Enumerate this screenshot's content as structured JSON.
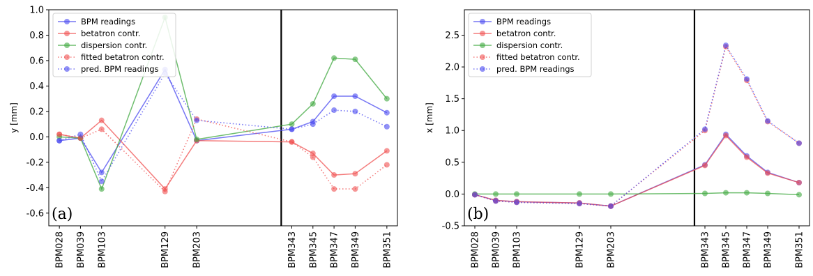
{
  "chart_data": [
    {
      "type": "line",
      "panel_label": "(a)",
      "ylabel": "y [mm]",
      "ylim": [
        -0.7,
        1.0
      ],
      "yticks": [
        "-0.6",
        "-0.4",
        "-0.2",
        "0.0",
        "0.2",
        "0.4",
        "0.6",
        "0.8",
        "1.0"
      ],
      "ytick_values": [
        -0.6,
        -0.4,
        -0.2,
        0.0,
        0.2,
        0.4,
        0.6,
        0.8,
        1.0
      ],
      "categories": [
        "BPM028",
        "BPM039",
        "BPM103",
        "BPM129",
        "BPM203",
        "BPM343",
        "BPM345",
        "BPM347",
        "BPM349",
        "BPM351"
      ],
      "x": [
        0.5,
        1.5,
        2.5,
        5.5,
        7.0,
        11.5,
        12.5,
        13.5,
        14.5,
        16.0
      ],
      "xlim": [
        0,
        16.5
      ],
      "vline": 11.0,
      "legend": "top-left",
      "series": [
        {
          "name": "BPM readings",
          "color": "#4a4af0",
          "style": "solid",
          "values": [
            -0.03,
            -0.01,
            -0.28,
            0.53,
            -0.03,
            0.06,
            0.12,
            0.32,
            0.32,
            0.19
          ]
        },
        {
          "name": "betatron contr.",
          "color": "#f05050",
          "style": "solid",
          "values": [
            0.02,
            -0.01,
            0.13,
            -0.41,
            -0.03,
            -0.04,
            -0.13,
            -0.3,
            -0.29,
            -0.11
          ]
        },
        {
          "name": "dispersion contr.",
          "color": "#3fa83f",
          "style": "solid",
          "values": [
            0.0,
            -0.01,
            -0.41,
            0.94,
            -0.02,
            0.1,
            0.26,
            0.62,
            0.61,
            0.3
          ]
        },
        {
          "name": "fitted betatron contr.",
          "color": "#f05050",
          "style": "dotted",
          "values": [
            0.02,
            -0.01,
            0.06,
            -0.43,
            0.14,
            -0.04,
            -0.16,
            -0.41,
            -0.41,
            -0.22
          ]
        },
        {
          "name": "pred. BPM readings",
          "color": "#4a4af0",
          "style": "dotted",
          "values": [
            -0.03,
            0.02,
            -0.35,
            0.5,
            0.13,
            0.06,
            0.1,
            0.21,
            0.2,
            0.08
          ]
        }
      ]
    },
    {
      "type": "line",
      "panel_label": "(b)",
      "ylabel": "x [mm]",
      "ylim": [
        -0.5,
        2.9
      ],
      "yticks": [
        "-0.5",
        "0.0",
        "0.5",
        "1.0",
        "1.5",
        "2.0",
        "2.5"
      ],
      "ytick_values": [
        -0.5,
        0.0,
        0.5,
        1.0,
        1.5,
        2.0,
        2.5
      ],
      "categories": [
        "BPM028",
        "BPM039",
        "BPM103",
        "BPM129",
        "BPM203",
        "BPM343",
        "BPM345",
        "BPM347",
        "BPM349",
        "BPM351"
      ],
      "x": [
        0.5,
        1.5,
        2.5,
        5.5,
        7.0,
        11.5,
        12.5,
        13.5,
        14.5,
        16.0
      ],
      "xlim": [
        0,
        16.5
      ],
      "vline": 11.0,
      "legend": "top-left",
      "series": [
        {
          "name": "BPM readings",
          "color": "#4a4af0",
          "style": "solid",
          "values": [
            -0.01,
            -0.1,
            -0.12,
            -0.14,
            -0.19,
            0.46,
            0.94,
            0.6,
            0.34,
            0.18
          ]
        },
        {
          "name": "betatron contr.",
          "color": "#f05050",
          "style": "solid",
          "values": [
            -0.01,
            -0.1,
            -0.12,
            -0.14,
            -0.19,
            0.45,
            0.92,
            0.58,
            0.33,
            0.18
          ]
        },
        {
          "name": "dispersion contr.",
          "color": "#3fa83f",
          "style": "solid",
          "values": [
            0.0,
            0.0,
            0.0,
            0.0,
            0.0,
            0.01,
            0.02,
            0.02,
            0.01,
            -0.01
          ]
        },
        {
          "name": "fitted betatron contr.",
          "color": "#f05050",
          "style": "dotted",
          "values": [
            -0.01,
            -0.11,
            -0.13,
            -0.15,
            -0.19,
            1.0,
            2.32,
            1.79,
            1.14,
            0.8
          ]
        },
        {
          "name": "pred. BPM readings",
          "color": "#4a4af0",
          "style": "dotted",
          "values": [
            -0.01,
            -0.11,
            -0.13,
            -0.15,
            -0.19,
            1.02,
            2.34,
            1.81,
            1.15,
            0.8
          ]
        }
      ]
    }
  ]
}
